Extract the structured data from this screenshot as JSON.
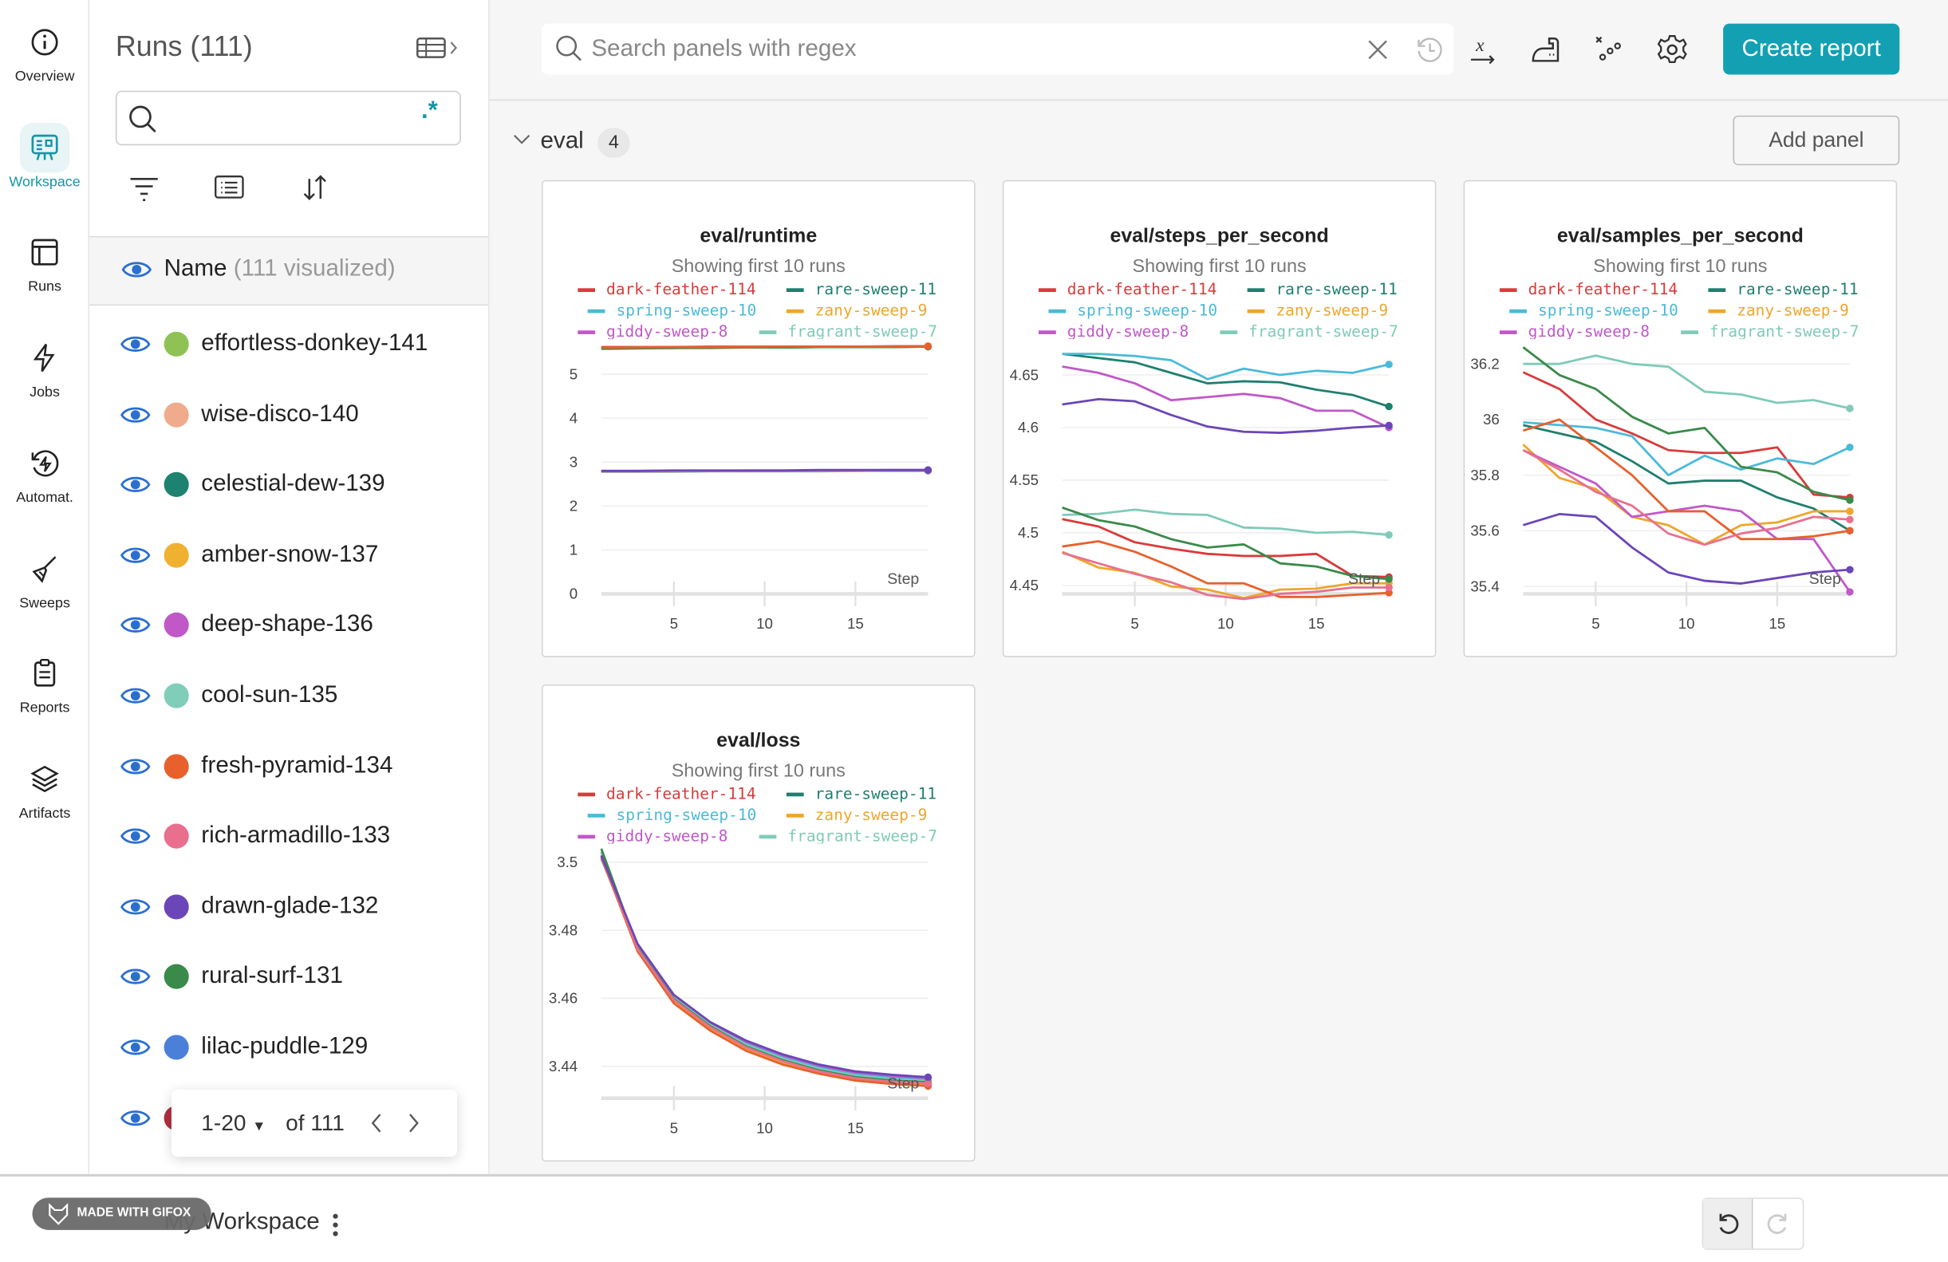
{
  "nav": [
    {
      "label": "Overview",
      "icon": "info-icon"
    },
    {
      "label": "Workspace",
      "icon": "workspace-icon",
      "active": true
    },
    {
      "label": "Runs",
      "icon": "table-icon"
    },
    {
      "label": "Jobs",
      "icon": "lightning-icon"
    },
    {
      "label": "Automat.",
      "icon": "automation-icon"
    },
    {
      "label": "Sweeps",
      "icon": "broom-icon"
    },
    {
      "label": "Reports",
      "icon": "clipboard-icon"
    },
    {
      "label": "Artifacts",
      "icon": "layers-icon"
    }
  ],
  "runs_panel": {
    "title": "Runs (111)",
    "search_value": "",
    "regex_label": ".*",
    "name_header": "Name",
    "visualized": "(111 visualized)",
    "runs": [
      {
        "name": "effortless-donkey-141",
        "color": "#8fc255"
      },
      {
        "name": "wise-disco-140",
        "color": "#f0ab8c"
      },
      {
        "name": "celestial-dew-139",
        "color": "#1e8270"
      },
      {
        "name": "amber-snow-137",
        "color": "#f0b030"
      },
      {
        "name": "deep-shape-136",
        "color": "#c058c8"
      },
      {
        "name": "cool-sun-135",
        "color": "#80cdb8"
      },
      {
        "name": "fresh-pyramid-134",
        "color": "#e8602c"
      },
      {
        "name": "rich-armadillo-133",
        "color": "#e8708e"
      },
      {
        "name": "drawn-glade-132",
        "color": "#6b46b8"
      },
      {
        "name": "rural-surf-131",
        "color": "#3a8a4a"
      },
      {
        "name": "lilac-puddle-129",
        "color": "#4a80d8"
      },
      {
        "name": "",
        "color": "#b03040"
      }
    ],
    "pager": {
      "range": "1-20",
      "of": "of 111"
    }
  },
  "toolbar": {
    "search_placeholder": "Search panels with regex",
    "create_report": "Create report",
    "icons": [
      "close-icon",
      "history-icon",
      "x-axis-icon",
      "smoothing-iron-icon",
      "outliers-icon",
      "gear-icon"
    ]
  },
  "section": {
    "name": "eval",
    "count": "4",
    "add_panel": "Add panel"
  },
  "bottom": {
    "workspace": "My Workspace",
    "watermark": "MADE WITH GIFOX"
  },
  "colors": {
    "accent": "#13a0b3"
  },
  "legend": [
    {
      "name": "dark-feather-114",
      "color": "#d93b3b"
    },
    {
      "name": "rare-sweep-11",
      "color": "#1e7f6f"
    },
    {
      "name": "spring-sweep-10",
      "color": "#4bbad8"
    },
    {
      "name": "zany-sweep-9",
      "color": "#eda62c"
    },
    {
      "name": "giddy-sweep-8",
      "color": "#c058c8"
    },
    {
      "name": "fragrant-sweep-7",
      "color": "#80cab8"
    }
  ],
  "chart_data": [
    {
      "type": "line",
      "title": "eval/runtime",
      "subtitle": "Showing first 10 runs",
      "xlabel": "Step",
      "x": [
        1,
        3,
        5,
        7,
        9,
        11,
        13,
        15,
        17,
        19
      ],
      "xlim": [
        1,
        19
      ],
      "xticks": [
        5,
        10,
        15
      ],
      "ylim": [
        0,
        5.8
      ],
      "yticks": [
        0,
        1,
        2,
        3,
        4,
        5
      ],
      "grid": true,
      "series": [
        {
          "name": "dark-feather-114",
          "color": "#d93b3b",
          "values": [
            5.62,
            5.62,
            5.62,
            5.63,
            5.63,
            5.63,
            5.63,
            5.63,
            5.64,
            5.64
          ]
        },
        {
          "name": "rare-sweep-11",
          "color": "#1e7f6f",
          "values": [
            5.59,
            5.6,
            5.6,
            5.61,
            5.61,
            5.61,
            5.62,
            5.62,
            5.62,
            5.63
          ]
        },
        {
          "name": "spring-sweep-10",
          "color": "#4bbad8",
          "values": [
            2.78,
            2.78,
            2.78,
            2.79,
            2.79,
            2.79,
            2.79,
            2.8,
            2.8,
            2.8
          ]
        },
        {
          "name": "zany-sweep-9",
          "color": "#eda62c",
          "values": [
            2.79,
            2.79,
            2.79,
            2.8,
            2.8,
            2.8,
            2.8,
            2.8,
            2.81,
            2.81
          ]
        },
        {
          "name": "giddy-sweep-8",
          "color": "#c058c8",
          "values": [
            2.8,
            2.8,
            2.8,
            2.8,
            2.81,
            2.81,
            2.81,
            2.81,
            2.82,
            2.82
          ]
        },
        {
          "name": "fragrant-sweep-7",
          "color": "#80cab8",
          "values": [
            5.6,
            5.61,
            5.61,
            5.61,
            5.62,
            5.62,
            5.62,
            5.63,
            5.63,
            5.63
          ]
        },
        {
          "color": "#3a8a4a",
          "values": [
            5.58,
            5.59,
            5.6,
            5.6,
            5.61,
            5.61,
            5.62,
            5.62,
            5.62,
            5.63
          ]
        },
        {
          "color": "#e8602c",
          "values": [
            5.61,
            5.61,
            5.62,
            5.62,
            5.62,
            5.63,
            5.63,
            5.63,
            5.63,
            5.64
          ]
        },
        {
          "color": "#e8708e",
          "values": [
            2.79,
            2.79,
            2.8,
            2.8,
            2.8,
            2.8,
            2.81,
            2.81,
            2.81,
            2.81
          ]
        },
        {
          "color": "#6b46b8",
          "values": [
            2.8,
            2.8,
            2.81,
            2.81,
            2.81,
            2.81,
            2.82,
            2.82,
            2.82,
            2.82
          ]
        }
      ]
    },
    {
      "type": "line",
      "title": "eval/steps_per_second",
      "subtitle": "Showing first 10 runs",
      "xlabel": "Step",
      "x": [
        1,
        3,
        5,
        7,
        9,
        11,
        13,
        15,
        17,
        19
      ],
      "xlim": [
        1,
        19
      ],
      "xticks": [
        5,
        10,
        15
      ],
      "ylim": [
        4.442,
        4.684
      ],
      "yticks": [
        4.45,
        4.5,
        4.55,
        4.6,
        4.65
      ],
      "grid": true,
      "series": [
        {
          "name": "dark-feather-114",
          "color": "#d93b3b",
          "values": [
            4.513,
            4.506,
            4.491,
            4.485,
            4.48,
            4.478,
            4.478,
            4.48,
            4.459,
            4.458
          ]
        },
        {
          "name": "rare-sweep-11",
          "color": "#1e7f6f",
          "values": [
            4.67,
            4.666,
            4.662,
            4.652,
            4.642,
            4.644,
            4.643,
            4.636,
            4.631,
            4.62
          ]
        },
        {
          "name": "spring-sweep-10",
          "color": "#4bbad8",
          "values": [
            4.67,
            4.67,
            4.668,
            4.664,
            4.646,
            4.656,
            4.65,
            4.654,
            4.652,
            4.66
          ]
        },
        {
          "name": "zany-sweep-9",
          "color": "#eda62c",
          "values": [
            4.482,
            4.467,
            4.462,
            4.449,
            4.446,
            4.438,
            4.446,
            4.447,
            4.452,
            4.452
          ]
        },
        {
          "name": "giddy-sweep-8",
          "color": "#c058c8",
          "values": [
            4.658,
            4.652,
            4.642,
            4.626,
            4.629,
            4.632,
            4.628,
            4.616,
            4.616,
            4.6
          ]
        },
        {
          "name": "fragrant-sweep-7",
          "color": "#80cab8",
          "values": [
            4.517,
            4.518,
            4.522,
            4.518,
            4.517,
            4.505,
            4.504,
            4.5,
            4.501,
            4.498
          ]
        },
        {
          "color": "#3a8a4a",
          "values": [
            4.524,
            4.512,
            4.506,
            4.494,
            4.486,
            4.489,
            4.471,
            4.468,
            4.459,
            4.456
          ]
        },
        {
          "color": "#e8602c",
          "values": [
            4.487,
            4.492,
            4.482,
            4.468,
            4.452,
            4.452,
            4.439,
            4.439,
            4.441,
            4.443
          ]
        },
        {
          "color": "#e8708e",
          "values": [
            4.481,
            4.471,
            4.461,
            4.453,
            4.441,
            4.437,
            4.442,
            4.444,
            4.448,
            4.448
          ]
        },
        {
          "color": "#6b46b8",
          "values": [
            4.622,
            4.627,
            4.625,
            4.612,
            4.601,
            4.596,
            4.595,
            4.597,
            4.6,
            4.602
          ]
        }
      ]
    },
    {
      "type": "line",
      "title": "eval/samples_per_second",
      "subtitle": "Showing first 10 runs",
      "xlabel": "Step",
      "x": [
        1,
        3,
        5,
        7,
        9,
        11,
        13,
        15,
        17,
        19
      ],
      "xlim": [
        1,
        19
      ],
      "xticks": [
        5,
        10,
        15
      ],
      "ylim": [
        35.373,
        36.289
      ],
      "yticks": [
        35.4,
        35.6,
        35.8,
        36,
        36.2
      ],
      "grid": true,
      "series": [
        {
          "name": "dark-feather-114",
          "color": "#d93b3b",
          "values": [
            36.17,
            36.11,
            36.0,
            35.95,
            35.89,
            35.88,
            35.88,
            35.9,
            35.73,
            35.72
          ]
        },
        {
          "name": "rare-sweep-11",
          "color": "#1e7f6f",
          "values": [
            35.98,
            35.95,
            35.92,
            35.85,
            35.77,
            35.78,
            35.78,
            35.72,
            35.68,
            35.6
          ]
        },
        {
          "name": "spring-sweep-10",
          "color": "#4bbad8",
          "values": [
            35.99,
            35.98,
            35.97,
            35.94,
            35.8,
            35.87,
            35.82,
            35.86,
            35.84,
            35.9
          ]
        },
        {
          "name": "zany-sweep-9",
          "color": "#eda62c",
          "values": [
            35.91,
            35.79,
            35.75,
            35.65,
            35.62,
            35.55,
            35.62,
            35.63,
            35.67,
            35.67
          ]
        },
        {
          "name": "giddy-sweep-8",
          "color": "#c058c8",
          "values": [
            35.89,
            35.83,
            35.77,
            35.65,
            35.67,
            35.69,
            35.67,
            35.57,
            35.57,
            35.38
          ]
        },
        {
          "name": "fragrant-sweep-7",
          "color": "#80cab8",
          "values": [
            36.2,
            36.2,
            36.23,
            36.2,
            36.19,
            36.1,
            36.09,
            36.06,
            36.07,
            36.04
          ]
        },
        {
          "color": "#3a8a4a",
          "values": [
            36.26,
            36.16,
            36.11,
            36.01,
            35.95,
            35.97,
            35.83,
            35.81,
            35.74,
            35.71
          ]
        },
        {
          "color": "#e8602c",
          "values": [
            35.96,
            36.0,
            35.9,
            35.8,
            35.67,
            35.67,
            35.57,
            35.57,
            35.58,
            35.6
          ]
        },
        {
          "color": "#e8708e",
          "values": [
            35.89,
            35.82,
            35.74,
            35.69,
            35.59,
            35.55,
            35.59,
            35.61,
            35.65,
            35.64
          ]
        },
        {
          "color": "#6b46b8",
          "values": [
            35.62,
            35.66,
            35.65,
            35.54,
            35.45,
            35.42,
            35.41,
            35.43,
            35.45,
            35.46
          ]
        }
      ]
    },
    {
      "type": "line",
      "title": "eval/loss",
      "subtitle": "Showing first 10 runs",
      "xlabel": "Step",
      "x": [
        1,
        3,
        5,
        7,
        9,
        11,
        13,
        15,
        17,
        19
      ],
      "xlim": [
        1,
        19
      ],
      "xticks": [
        5,
        10,
        15
      ],
      "ylim": [
        3.4306,
        3.5055
      ],
      "yticks": [
        3.44,
        3.46,
        3.48,
        3.5
      ],
      "grid": true,
      "series": [
        {
          "name": "dark-feather-114",
          "color": "#d93b3b",
          "values": [
            3.502,
            3.4745,
            3.4595,
            3.4515,
            3.4455,
            3.4415,
            3.4385,
            3.4365,
            3.4355,
            3.4352
          ]
        },
        {
          "name": "rare-sweep-11",
          "color": "#1e7f6f",
          "values": [
            3.503,
            3.475,
            3.46,
            3.452,
            3.446,
            3.442,
            3.439,
            3.437,
            3.436,
            3.4355
          ]
        },
        {
          "name": "spring-sweep-10",
          "color": "#4bbad8",
          "values": [
            3.501,
            3.4755,
            3.4605,
            3.4525,
            3.4468,
            3.4428,
            3.4398,
            3.4378,
            3.4368,
            3.4362
          ]
        },
        {
          "name": "zany-sweep-9",
          "color": "#eda62c",
          "values": [
            3.502,
            3.474,
            3.459,
            3.451,
            3.445,
            3.441,
            3.438,
            3.436,
            3.435,
            3.4348
          ]
        },
        {
          "name": "giddy-sweep-8",
          "color": "#c058c8",
          "values": [
            3.502,
            3.4758,
            3.4608,
            3.4528,
            3.4472,
            3.4432,
            3.4402,
            3.4382,
            3.4372,
            3.4365
          ]
        },
        {
          "name": "fragrant-sweep-7",
          "color": "#80cab8",
          "values": [
            3.503,
            3.4752,
            3.4602,
            3.4522,
            3.4462,
            3.4422,
            3.4392,
            3.4372,
            3.4362,
            3.4356
          ]
        },
        {
          "color": "#3a8a4a",
          "values": [
            3.504,
            3.4748,
            3.4598,
            3.4518,
            3.4458,
            3.4418,
            3.4388,
            3.4368,
            3.4358,
            3.4353
          ]
        },
        {
          "color": "#e8602c",
          "values": [
            3.5015,
            3.4738,
            3.4585,
            3.4505,
            3.4445,
            3.4405,
            3.4378,
            3.4358,
            3.4348,
            3.4342
          ]
        },
        {
          "color": "#e8708e",
          "values": [
            3.502,
            3.4745,
            3.4595,
            3.4515,
            3.4455,
            3.4415,
            3.4385,
            3.4365,
            3.4355,
            3.435
          ]
        },
        {
          "color": "#6b46b8",
          "values": [
            3.502,
            3.476,
            3.461,
            3.453,
            3.4475,
            3.4435,
            3.4405,
            3.4385,
            3.4375,
            3.4368
          ]
        }
      ]
    }
  ]
}
